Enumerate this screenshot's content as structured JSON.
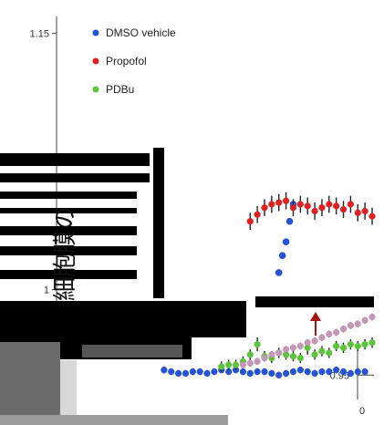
{
  "chart_data": {
    "type": "scatter",
    "title": "",
    "xlabel": "",
    "ylabel": "細胞膜の",
    "ylim": [
      0.94,
      1.16
    ],
    "yticks": [
      1.15,
      1,
      0.95
    ],
    "xticks": [
      0
    ],
    "xlim": [
      0,
      60
    ],
    "grid": false,
    "legend": {
      "placement": "top-left"
    },
    "series": [
      {
        "name": "DMSO vehicle",
        "color": "#2453d6",
        "x": [
          2,
          4,
          6,
          8,
          10,
          12,
          14,
          16,
          18,
          20,
          22,
          24,
          26,
          28,
          30,
          32,
          34,
          36,
          38,
          40,
          42,
          44,
          46,
          48,
          50,
          52,
          54,
          56,
          58
        ],
        "y": [
          0.953,
          0.952,
          0.951,
          0.951,
          0.952,
          0.952,
          0.951,
          0.952,
          0.953,
          0.952,
          0.953,
          0.952,
          0.951,
          0.952,
          0.952,
          0.951,
          0.95,
          0.951,
          0.952,
          0.953,
          0.952,
          0.951,
          0.952,
          0.952,
          0.953,
          0.952,
          0.951,
          0.952,
          0.952
        ],
        "err": [
          0.002,
          0.002,
          0.002,
          0.002,
          0.002,
          0.002,
          0.002,
          0.002,
          0.002,
          0.002,
          0.002,
          0.002,
          0.002,
          0.002,
          0.002,
          0.002,
          0.002,
          0.002,
          0.002,
          0.002,
          0.002,
          0.002,
          0.002,
          0.002,
          0.002,
          0.002,
          0.002,
          0.002,
          0.002
        ],
        "x2": [
          34,
          35,
          36,
          37,
          38
        ],
        "y2": [
          1.01,
          1.02,
          1.028,
          1.04,
          1.05
        ]
      },
      {
        "name": "Propofol",
        "color": "#e02020",
        "x": [
          26,
          28,
          30,
          32,
          34,
          36,
          38,
          40,
          42,
          44,
          46,
          48,
          50,
          52,
          54,
          56,
          58,
          60
        ],
        "y": [
          1.04,
          1.044,
          1.048,
          1.05,
          1.051,
          1.052,
          1.048,
          1.05,
          1.049,
          1.046,
          1.048,
          1.05,
          1.049,
          1.047,
          1.05,
          1.045,
          1.046,
          1.043
        ],
        "err": [
          0.005,
          0.005,
          0.005,
          0.005,
          0.005,
          0.005,
          0.005,
          0.005,
          0.005,
          0.005,
          0.005,
          0.005,
          0.005,
          0.005,
          0.005,
          0.005,
          0.005,
          0.005
        ]
      },
      {
        "name": "PDBu",
        "color": "#5cc43a",
        "x": [
          18,
          20,
          22,
          24,
          26,
          28,
          30,
          32,
          34,
          36,
          38,
          40,
          42,
          44,
          46,
          48,
          50,
          52,
          54,
          56,
          58,
          60
        ],
        "y": [
          0.955,
          0.956,
          0.956,
          0.958,
          0.962,
          0.968,
          0.961,
          0.96,
          0.963,
          0.962,
          0.961,
          0.96,
          0.966,
          0.962,
          0.964,
          0.963,
          0.967,
          0.966,
          0.968,
          0.967,
          0.968,
          0.969
        ],
        "err": [
          0.003,
          0.003,
          0.003,
          0.003,
          0.003,
          0.004,
          0.003,
          0.003,
          0.003,
          0.003,
          0.003,
          0.003,
          0.004,
          0.003,
          0.003,
          0.003,
          0.003,
          0.003,
          0.003,
          0.003,
          0.003,
          0.003
        ]
      },
      {
        "name": "",
        "color": "#c497b8",
        "x": [
          24,
          26,
          28,
          30,
          32,
          34,
          36,
          38,
          40,
          42,
          44,
          46,
          48,
          50,
          52,
          54,
          56,
          58,
          60
        ],
        "y": [
          0.956,
          0.957,
          0.958,
          0.96,
          0.962,
          0.963,
          0.965,
          0.966,
          0.967,
          0.969,
          0.97,
          0.972,
          0.974,
          0.975,
          0.977,
          0.979,
          0.98,
          0.982,
          0.984
        ],
        "err": [
          0.002,
          0.002,
          0.002,
          0.002,
          0.002,
          0.002,
          0.002,
          0.002,
          0.002,
          0.002,
          0.002,
          0.002,
          0.002,
          0.002,
          0.002,
          0.002,
          0.002,
          0.002,
          0.002
        ]
      }
    ]
  }
}
